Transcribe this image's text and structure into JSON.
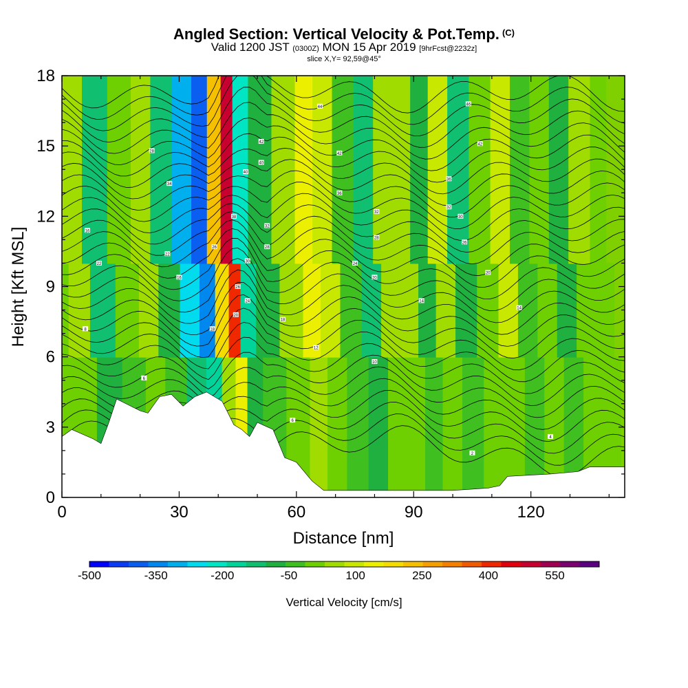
{
  "header": {
    "title": "Angled Section: Vertical Velocity & Pot.Temp.",
    "title_mark": "(C)",
    "valid_main_1": "Valid 1200 JST",
    "valid_z": "(0300Z)",
    "valid_main_2": "MON 15 Apr 2019",
    "valid_fcst": "[9hrFcst@2232z]",
    "slice": "slice X,Y= 92,59@45°"
  },
  "chart_data": {
    "type": "heatmap",
    "description_fields": "vertical velocity (shaded) with potential temperature contours",
    "xlabel": "Distance [nm]",
    "ylabel": "Height [Kft MSL]",
    "xlim": [
      0,
      144
    ],
    "ylim": [
      0,
      18
    ],
    "x_ticks": [
      0,
      30,
      60,
      90,
      120
    ],
    "y_ticks": [
      0,
      3,
      6,
      9,
      12,
      15,
      18
    ],
    "colorbar": {
      "label": "Vertical Velocity [cm/s]",
      "tick_labels": [
        "-500",
        "-350",
        "-200",
        "-50",
        "100",
        "250",
        "400",
        "550"
      ],
      "tick_values": [
        -500,
        -350,
        -200,
        -50,
        100,
        250,
        400,
        550
      ],
      "min": -500,
      "max": 650,
      "step": 50,
      "colors": [
        "#0000ff",
        "#0a3cf5",
        "#0a5ff0",
        "#0088ee",
        "#00b0ee",
        "#00dcee",
        "#00e6c4",
        "#00d49a",
        "#10c070",
        "#20b040",
        "#40c020",
        "#6ed000",
        "#a0dc00",
        "#c8e800",
        "#ecf000",
        "#f5dc00",
        "#f5c000",
        "#f5a000",
        "#f58000",
        "#f05a00",
        "#f02800",
        "#e00010",
        "#c80030",
        "#a00050",
        "#7a0070",
        "#5a0080"
      ]
    },
    "velocity_columns": [
      {
        "x": 2,
        "value": 75
      },
      {
        "x": 7,
        "value": 120
      },
      {
        "x": 13,
        "value": -100
      },
      {
        "x": 20,
        "value": 60
      },
      {
        "x": 25,
        "value": 130
      },
      {
        "x": 30,
        "value": -60
      },
      {
        "x": 36,
        "value": -270
      },
      {
        "x": 40,
        "value": -380
      },
      {
        "x": 44,
        "value": 300
      },
      {
        "x": 47,
        "value": 620
      },
      {
        "x": 50,
        "value": -170
      },
      {
        "x": 55,
        "value": -50
      },
      {
        "x": 62,
        "value": 120
      },
      {
        "x": 67,
        "value": 230
      },
      {
        "x": 71,
        "value": 180
      },
      {
        "x": 77,
        "value": 20
      },
      {
        "x": 82,
        "value": -80
      },
      {
        "x": 87,
        "value": 140
      },
      {
        "x": 92,
        "value": 120
      },
      {
        "x": 96,
        "value": -40
      },
      {
        "x": 101,
        "value": 150
      },
      {
        "x": 106,
        "value": -60
      },
      {
        "x": 112,
        "value": 90
      },
      {
        "x": 117,
        "value": 180
      },
      {
        "x": 122,
        "value": 40
      },
      {
        "x": 127,
        "value": 90
      },
      {
        "x": 132,
        "value": -40
      },
      {
        "x": 137,
        "value": 100
      },
      {
        "x": 143,
        "value": 70
      }
    ],
    "terrain_height_kft": [
      [
        0,
        2.6
      ],
      [
        2.5,
        2.9
      ],
      [
        8,
        2.5
      ],
      [
        10,
        2.3
      ],
      [
        12,
        3.2
      ],
      [
        14,
        4.2
      ],
      [
        20,
        3.7
      ],
      [
        22,
        3.6
      ],
      [
        25,
        4.3
      ],
      [
        28,
        4.4
      ],
      [
        31,
        3.9
      ],
      [
        34,
        4.3
      ],
      [
        37,
        4.5
      ],
      [
        41,
        4.1
      ],
      [
        44,
        3.1
      ],
      [
        46,
        2.9
      ],
      [
        48,
        2.6
      ],
      [
        50,
        3.2
      ],
      [
        54,
        2.9
      ],
      [
        57,
        1.7
      ],
      [
        60,
        1.5
      ],
      [
        64,
        0.7
      ],
      [
        67,
        0.3
      ],
      [
        72,
        0.3
      ],
      [
        80,
        0.3
      ],
      [
        90,
        0.3
      ],
      [
        100,
        0.3
      ],
      [
        109,
        0.4
      ],
      [
        112,
        0.5
      ],
      [
        114,
        0.9
      ],
      [
        125,
        1.0
      ],
      [
        132,
        1.1
      ],
      [
        135,
        1.3
      ],
      [
        144,
        1.3
      ]
    ],
    "contour_labels": [
      {
        "x": 6,
        "y": 7.2,
        "text": "8"
      },
      {
        "x": 6.5,
        "y": 11.4,
        "text": "16"
      },
      {
        "x": 9.5,
        "y": 10.0,
        "text": "22"
      },
      {
        "x": 21,
        "y": 5.1,
        "text": "6"
      },
      {
        "x": 23,
        "y": 14.8,
        "text": "28"
      },
      {
        "x": 27.5,
        "y": 13.4,
        "text": "34"
      },
      {
        "x": 27,
        "y": 10.4,
        "text": "22"
      },
      {
        "x": 30,
        "y": 9.4,
        "text": "16"
      },
      {
        "x": 39,
        "y": 10.7,
        "text": "26"
      },
      {
        "x": 38.5,
        "y": 7.2,
        "text": "18"
      },
      {
        "x": 44,
        "y": 12.0,
        "text": "38"
      },
      {
        "x": 45,
        "y": 9.0,
        "text": "26"
      },
      {
        "x": 44.5,
        "y": 7.8,
        "text": "20"
      },
      {
        "x": 47,
        "y": 13.9,
        "text": "40"
      },
      {
        "x": 47.5,
        "y": 10.1,
        "text": "30"
      },
      {
        "x": 47.5,
        "y": 8.4,
        "text": "24"
      },
      {
        "x": 51,
        "y": 15.2,
        "text": "42"
      },
      {
        "x": 51,
        "y": 14.3,
        "text": "40"
      },
      {
        "x": 52.5,
        "y": 11.6,
        "text": "32"
      },
      {
        "x": 52.5,
        "y": 10.7,
        "text": "28"
      },
      {
        "x": 56.5,
        "y": 7.6,
        "text": "18"
      },
      {
        "x": 59,
        "y": 3.3,
        "text": "6"
      },
      {
        "x": 65,
        "y": 6.4,
        "text": "12"
      },
      {
        "x": 66,
        "y": 16.7,
        "text": "44"
      },
      {
        "x": 71,
        "y": 14.7,
        "text": "42"
      },
      {
        "x": 71,
        "y": 13.0,
        "text": "36"
      },
      {
        "x": 75,
        "y": 10.0,
        "text": "24"
      },
      {
        "x": 80,
        "y": 9.4,
        "text": "20"
      },
      {
        "x": 80.5,
        "y": 12.2,
        "text": "32"
      },
      {
        "x": 80.5,
        "y": 11.1,
        "text": "28"
      },
      {
        "x": 80,
        "y": 5.8,
        "text": "10"
      },
      {
        "x": 92,
        "y": 8.4,
        "text": "14"
      },
      {
        "x": 99,
        "y": 13.6,
        "text": "36"
      },
      {
        "x": 99,
        "y": 12.4,
        "text": "32"
      },
      {
        "x": 102,
        "y": 12.0,
        "text": "30"
      },
      {
        "x": 103,
        "y": 10.9,
        "text": "26"
      },
      {
        "x": 104,
        "y": 16.8,
        "text": "46"
      },
      {
        "x": 107,
        "y": 15.1,
        "text": "42"
      },
      {
        "x": 109,
        "y": 9.6,
        "text": "20"
      },
      {
        "x": 117,
        "y": 8.1,
        "text": "14"
      },
      {
        "x": 105,
        "y": 1.9,
        "text": "2"
      },
      {
        "x": 125,
        "y": 2.6,
        "text": "4"
      }
    ]
  }
}
